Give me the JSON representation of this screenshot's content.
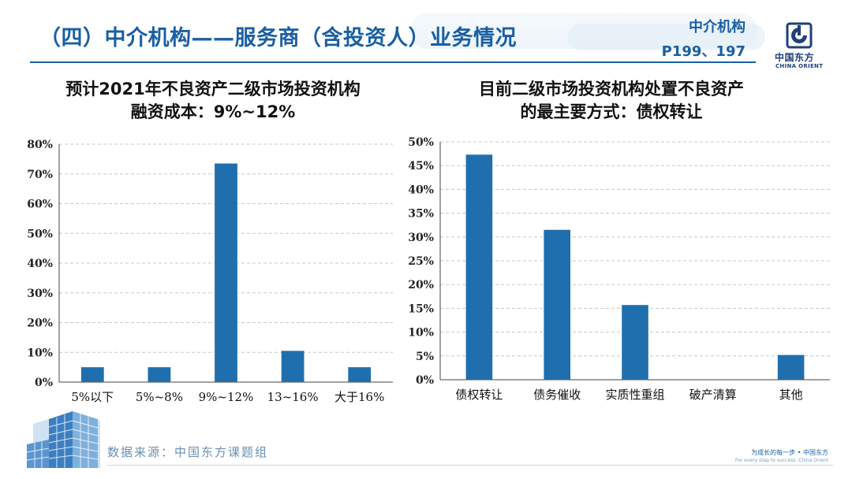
{
  "header": {
    "title": "（四）中介机构——服务商（含投资人）业务情况",
    "ref_line1": "中介机构",
    "ref_line2": "P199、197"
  },
  "logo": {
    "name_cn": "中国东方",
    "name_en": "CHINA ORIENT"
  },
  "footer": {
    "source": "数据来源：中国东方课题组",
    "slogan_cn": "为成长的每一步 • 中国东方",
    "slogan_en": "For every step to success. China Orient"
  },
  "colors": {
    "accent": "#1a5fa3",
    "bar": "#1f6fae",
    "grid": "#c8c8c8"
  },
  "chart_data": [
    {
      "type": "bar",
      "title_line1": "预计2021年不良资产二级市场投资机构",
      "title_line2": "融资成本：9%~12%",
      "categories": [
        "5%以下",
        "5%~8%",
        "9%~12%",
        "13~16%",
        "大于16%"
      ],
      "values": [
        5,
        5,
        73.5,
        10.5,
        5
      ],
      "unit": "%",
      "ylim": [
        0,
        80
      ],
      "yticks": [
        0,
        10,
        20,
        30,
        40,
        50,
        60,
        70,
        80
      ],
      "ytick_labels": [
        "0%",
        "10%",
        "20%",
        "30%",
        "40%",
        "50%",
        "60%",
        "70%",
        "80%"
      ],
      "grid": true
    },
    {
      "type": "bar",
      "title_line1": "目前二级市场投资机构处置不良资产",
      "title_line2": "的最主要方式：债权转让",
      "categories": [
        "债权转让",
        "债务催收",
        "实质性重组",
        "破产清算",
        "其他"
      ],
      "values": [
        47.3,
        31.5,
        15.7,
        0,
        5.2
      ],
      "unit": "%",
      "ylim": [
        0,
        50
      ],
      "yticks": [
        0,
        5,
        10,
        15,
        20,
        25,
        30,
        35,
        40,
        45,
        50
      ],
      "ytick_labels": [
        "0%",
        "5%",
        "10%",
        "15%",
        "20%",
        "25%",
        "30%",
        "35%",
        "40%",
        "45%",
        "50%"
      ],
      "grid": true
    }
  ]
}
